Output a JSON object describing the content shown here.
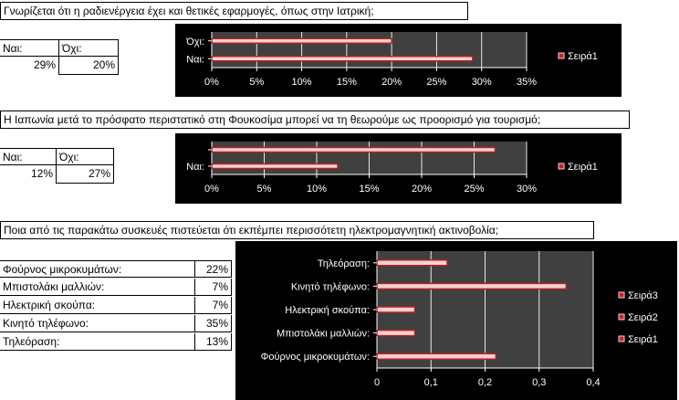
{
  "questions": [
    {
      "text": "Γνωρίζεται ότι η ραδιενέργεια έχει και θετικές εφαρμογές, όπως στην Ιατρική;",
      "headers": [
        "Ναι:",
        "Όχι:"
      ],
      "values": [
        "29%",
        "20%"
      ]
    },
    {
      "text": "Η Ιαπωνία μετά το πρόσφατο περιστατικό στη Φουκοσίμα μπορεί να τη θεωρούμε ως προορισμό για τουρισμό;",
      "headers": [
        "Ναι:",
        "Όχι:"
      ],
      "values": [
        "12%",
        "27%"
      ]
    },
    {
      "text": "Ποια από τις παρακάτω συσκευές πιστεύεται ότι εκπέμπει περισσότετη ηλεκτρομαγνητική ακτινοβολία;",
      "rows": [
        {
          "label": "Φούρνος μικροκυμάτων:",
          "value": "22%"
        },
        {
          "label": "Μπιστολάκι μαλλιών:",
          "value": "7%"
        },
        {
          "label": "Ηλεκτρική σκούπα:",
          "value": "7%"
        },
        {
          "label": "Κινητό τηλέφωνο:",
          "value": "35%"
        },
        {
          "label": "Τηλεόραση:",
          "value": "13%"
        }
      ]
    }
  ],
  "colors": {
    "chart_bg": "#000000",
    "plot_bg": "#404040",
    "bar_fill": "#f4d0d0",
    "bar_edge": "#b22222",
    "legend_swatch": "#cc2222",
    "text": "#ffffff",
    "grid": "#e8e8e8"
  },
  "chart_data": [
    {
      "type": "bar",
      "orientation": "horizontal",
      "categories": [
        "Ναι:",
        "Όχι:"
      ],
      "series": [
        {
          "name": "Σειρά1",
          "values": [
            0.29,
            0.2
          ]
        }
      ],
      "xticks": [
        "0%",
        "5%",
        "10%",
        "15%",
        "20%",
        "25%",
        "30%",
        "35%"
      ],
      "xlim": [
        0,
        0.35
      ],
      "legend": [
        "Σειρά1"
      ],
      "legend_position": "right",
      "grid": true
    },
    {
      "type": "bar",
      "orientation": "horizontal",
      "categories": [
        "Ναι:",
        ""
      ],
      "series": [
        {
          "name": "Σειρά1",
          "values": [
            0.12,
            0.27
          ]
        }
      ],
      "xticks": [
        "0%",
        "5%",
        "10%",
        "15%",
        "20%",
        "25%",
        "30%"
      ],
      "xlim": [
        0,
        0.3
      ],
      "legend": [
        "Σειρά1"
      ],
      "legend_position": "right",
      "grid": true
    },
    {
      "type": "bar",
      "orientation": "horizontal",
      "categories": [
        "Φούρνος μικροκυμάτων:",
        "Μπιστολάκι μαλλιών:",
        "Ηλεκτρική σκούπα:",
        "Κινητό τηλέφωνο:",
        "Τηλεόραση:"
      ],
      "series": [
        {
          "name": "Σειρά1",
          "values": [
            0.22,
            0.07,
            0.07,
            0.35,
            0.13
          ]
        }
      ],
      "xticks": [
        "0",
        "0,1",
        "0,2",
        "0,3",
        "0,4"
      ],
      "xlim": [
        0,
        0.4
      ],
      "legend": [
        "Σειρά3",
        "Σειρά2",
        "Σειρά1"
      ],
      "legend_position": "right",
      "grid": true
    }
  ]
}
